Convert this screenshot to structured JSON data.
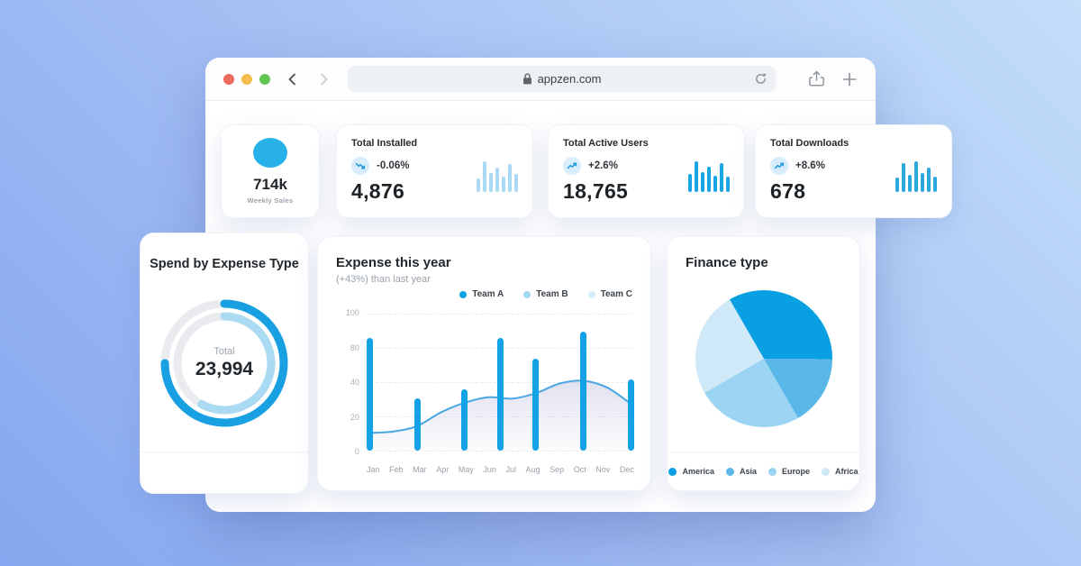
{
  "browser": {
    "url": "appzen.com",
    "traffic_lights": [
      "#ED6A5F",
      "#F5BF4F",
      "#61C554"
    ]
  },
  "stats": [
    {
      "value": "714k",
      "label": "Weekly Sales",
      "circle_color": "#29b2e9"
    },
    {
      "title": "Total Installed",
      "delta": "-0.06%",
      "trend": "down",
      "value": "4,876",
      "spark": {
        "color": "#a9d9f4",
        "bars": [
          42,
          95,
          58,
          75,
          46,
          85,
          56
        ]
      }
    },
    {
      "title": "Total Active Users",
      "delta": "+2.6%",
      "trend": "up",
      "value": "18,765",
      "spark": {
        "color": "#17a5e6",
        "bars": [
          55,
          95,
          62,
          78,
          50,
          88,
          46
        ]
      }
    },
    {
      "title": "Total Downloads",
      "delta": "+8.6%",
      "trend": "up",
      "value": "678",
      "spark": {
        "color": "#2ba8dd",
        "bars": [
          44,
          88,
          54,
          95,
          58,
          75,
          48
        ]
      }
    }
  ],
  "spend_card": {
    "title": "Spend by Expense Type",
    "center_label": "Total",
    "center_value": "23,994"
  },
  "expense_card": {
    "title": "Expense this year",
    "subtitle": "(+43%) than last year"
  },
  "finance_card": {
    "title": "Finance type"
  },
  "chart_data": [
    {
      "id": "spend-donut",
      "type": "donut",
      "title": "Spend by Expense Type",
      "center_label": "Total",
      "center_value": "23,994",
      "track_color": "#e9ebef",
      "rings": [
        {
          "name": "outer",
          "color": "#18a0e2",
          "pct": 75
        },
        {
          "name": "inner",
          "color": "#abdaf3",
          "pct": 58
        }
      ]
    },
    {
      "id": "expense-combo",
      "type": "bar+area-line",
      "title": "Expense this year",
      "subtitle": "(+43%) than last year",
      "legend": [
        {
          "label": "Team A",
          "color": "#0ba3e4"
        },
        {
          "label": "Team B",
          "color": "#a6d8f3"
        },
        {
          "label": "Team C",
          "color": "#d5ecfa"
        }
      ],
      "legend_position": "top-right",
      "categories": [
        "Jan",
        "Feb",
        "Mar",
        "Apr",
        "May",
        "Jun",
        "Jul",
        "Aug",
        "Sep",
        "Oct",
        "Nov",
        "Dec"
      ],
      "y_ticks": [
        "100",
        "80",
        "40",
        "20",
        "0"
      ],
      "ylim": [
        0,
        100
      ],
      "grid": "dashed-horizontal",
      "series": [
        {
          "name": "Team A",
          "type": "bar",
          "color": "#14a2e6",
          "points": [
            {
              "x": "Jan",
              "slot": 0,
              "value": 82
            },
            {
              "x": "Mar",
              "slot": 2,
              "value": 38
            },
            {
              "x": "May",
              "slot": 4,
              "value": 45
            },
            {
              "x": "Jun-Jul",
              "slot": 5.5,
              "value": 82
            },
            {
              "x": "Aug",
              "slot": 7,
              "value": 67
            },
            {
              "x": "Oct",
              "slot": 9,
              "value": 87
            },
            {
              "x": "Dec",
              "slot": 11,
              "value": 52
            }
          ]
        },
        {
          "name": "Team B",
          "type": "area-line",
          "line_color": "#49a8e2",
          "fill_color": "#8d8cc4",
          "values": [
            13,
            14,
            18,
            28,
            35,
            39,
            38,
            42,
            49,
            51,
            46,
            34
          ]
        }
      ]
    },
    {
      "id": "finance-pie",
      "type": "pie",
      "title": "Finance type",
      "start_angle_deg": -30,
      "legend_position": "bottom",
      "slices": [
        {
          "label": "America",
          "pct": 33.4,
          "color": "#09a0e3"
        },
        {
          "label": "Asia",
          "pct": 16.6,
          "color": "#59b8e8"
        },
        {
          "label": "Europe",
          "pct": 25,
          "color": "#9bd5f3"
        },
        {
          "label": "Africa",
          "pct": 25,
          "color": "#cfe9f9"
        }
      ]
    }
  ]
}
